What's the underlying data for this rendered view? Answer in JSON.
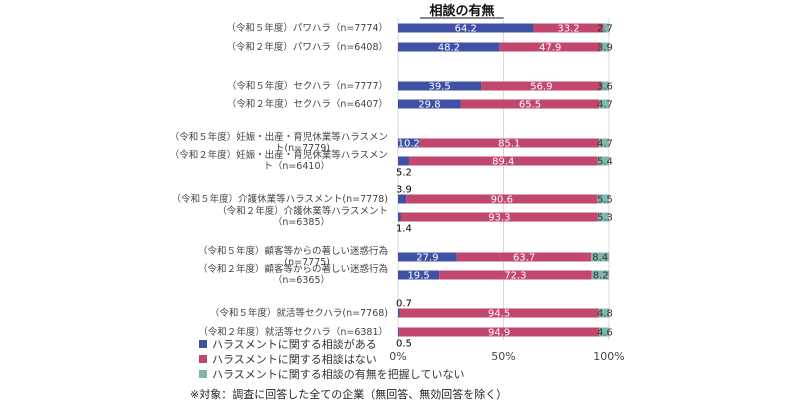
{
  "chart_data": {
    "type": "bar",
    "orientation": "horizontal",
    "stacked": true,
    "title": "相談の有無",
    "categories": [
      "（令和５年度）パワハラ（n=7774）",
      "（令和２年度）パワハラ（n=6408）",
      "（令和５年度）セクハラ（n=7777）",
      "（令和２年度）セクハラ（n=6407）",
      "（令和５年度）妊娠・出産・育児休業等ハラスメント(n=7779)",
      "（令和２年度）妊娠・出産・育児休業等ハラスメント（n=6410）",
      "（令和５年度）介護休業等ハラスメント(n=7778)",
      "（令和２年度）介護休業等ハラスメント（n=6385）",
      "（令和５年度）顧客等からの著しい迷惑行為(n=7775)",
      "（令和２年度）顧客等からの著しい迷惑行為（n=6365）",
      "（令和５年度）就活等セクハラ(n=7768)",
      "（令和２年度）就活等セクハラ（n=6381）"
    ],
    "label_lines": [
      [
        "（令和５年度）パワハラ（n=7774）"
      ],
      [
        "（令和２年度）パワハラ（n=6408）"
      ],
      [
        "（令和５年度）セクハラ（n=7777）"
      ],
      [
        "（令和２年度）セクハラ（n=6407）"
      ],
      [
        "（令和５年度）妊娠・出産・育児休業等ハラスメン",
        "ト(n=7779)"
      ],
      [
        "（令和２年度）妊娠・出産・育児休業等ハラスメン",
        "ト（n=6410）"
      ],
      [
        "（令和５年度）介護休業等ハラスメント(n=7778)"
      ],
      [
        "（令和２年度）介護休業等ハラスメント",
        "（n=6385）"
      ],
      [
        "（令和５年度）顧客等からの著しい迷惑行為",
        "(n=7775)"
      ],
      [
        "（令和２年度）顧客等からの著しい迷惑行為",
        "（n=6365）"
      ],
      [
        "（令和５年度）就活等セクハラ(n=7768)"
      ],
      [
        "（令和２年度）就活等セクハラ（n=6381）"
      ]
    ],
    "series": [
      {
        "name": "ハラスメントに関する相談がある",
        "color": "#3f51a5",
        "values": [
          64.2,
          48.2,
          39.5,
          29.8,
          10.2,
          5.2,
          3.9,
          1.4,
          27.9,
          19.5,
          0.7,
          0.5
        ]
      },
      {
        "name": "ハラスメントに関する相談はない",
        "color": "#c2476c",
        "values": [
          33.2,
          47.9,
          56.9,
          65.5,
          85.1,
          89.4,
          90.6,
          93.3,
          63.7,
          72.3,
          94.5,
          94.9
        ]
      },
      {
        "name": "ハラスメントに関する相談の有無を把握していない",
        "color": "#7fb7b0",
        "values": [
          2.7,
          3.9,
          3.6,
          4.7,
          4.7,
          5.4,
          5.5,
          5.3,
          8.4,
          8.2,
          4.8,
          4.6
        ]
      }
    ],
    "xlim": [
      0,
      100
    ],
    "xticks": [
      "0%",
      "50%",
      "100%"
    ],
    "grid": true,
    "legend": "bottom-left"
  },
  "footnote": "※対象：調査に回答した全ての企業（無回答、無効回答を除く）"
}
